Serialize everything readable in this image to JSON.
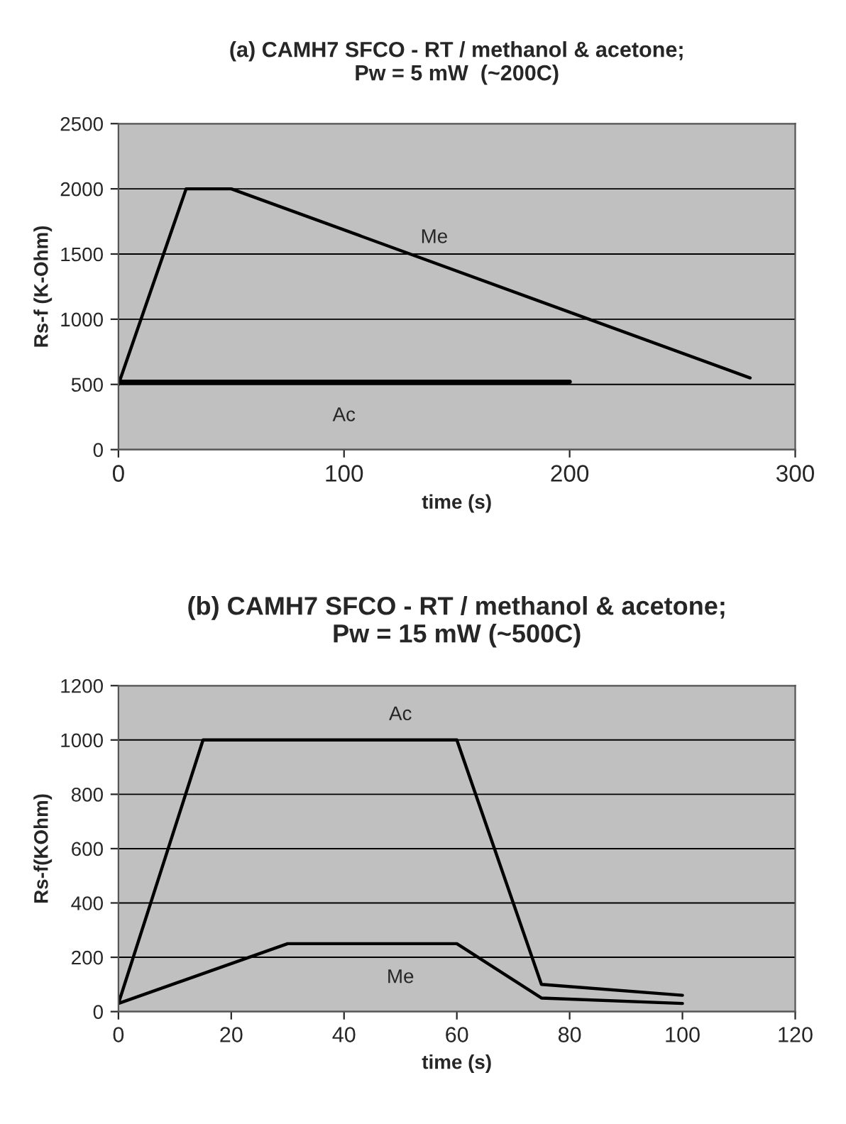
{
  "chart_data": [
    {
      "type": "line",
      "title": "(a) CAMH7 SFCO - RT / methanol & acetone;\nPw = 5 mW  (~200C)",
      "xlabel": "time (s)",
      "ylabel": "Rs-f (K-Ohm)",
      "xlim": [
        0,
        300
      ],
      "xticks": [
        0,
        100,
        200,
        300
      ],
      "ylim": [
        0,
        2500
      ],
      "yticks": [
        0,
        500,
        1000,
        1500,
        2000,
        2500
      ],
      "grid": "y",
      "legend": false,
      "series": [
        {
          "name": "Me",
          "color": "#000000",
          "x": [
            0,
            30,
            50,
            280
          ],
          "values": [
            500,
            2000,
            2000,
            550
          ]
        },
        {
          "name": "Ac",
          "color": "#000000",
          "x": [
            0,
            200
          ],
          "values": [
            520,
            520
          ]
        }
      ]
    },
    {
      "type": "line",
      "title": "(b) CAMH7 SFCO - RT / methanol & acetone;\nPw = 15 mW (~500C)",
      "xlabel": "time (s)",
      "ylabel": "Rs-f(KOhm)",
      "xlim": [
        0,
        120
      ],
      "xticks": [
        0,
        20,
        40,
        60,
        80,
        100,
        120
      ],
      "ylim": [
        0,
        1200
      ],
      "yticks": [
        0,
        200,
        400,
        600,
        800,
        1000,
        1200
      ],
      "grid": "y",
      "legend": false,
      "series": [
        {
          "name": "Ac",
          "color": "#000000",
          "x": [
            0,
            15,
            60,
            75,
            100
          ],
          "values": [
            30,
            1000,
            1000,
            100,
            60
          ]
        },
        {
          "name": "Me",
          "color": "#000000",
          "x": [
            0,
            30,
            60,
            75,
            100
          ],
          "values": [
            30,
            250,
            250,
            50,
            30
          ]
        }
      ]
    }
  ]
}
